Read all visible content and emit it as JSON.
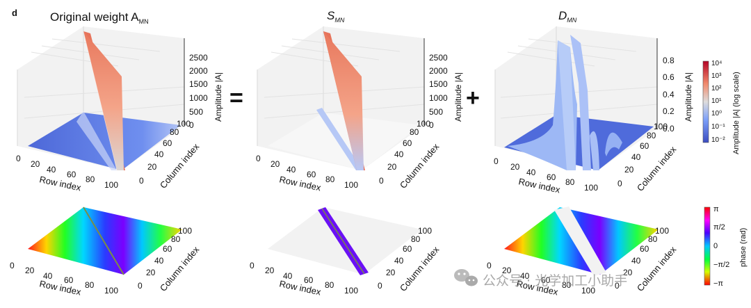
{
  "figure": {
    "panel_letter": "d",
    "titles": {
      "original": "Original weight A",
      "original_sub": "MN",
      "s": "S",
      "s_sub": "MN",
      "d": "D",
      "d_sub": "MN"
    },
    "operators": {
      "equals": "=",
      "plus": "+"
    },
    "axes": {
      "row_label": "Row index",
      "column_label": "Column index",
      "amplitude_label": "Amplitude |A|",
      "row_ticks": [
        "0",
        "20",
        "40",
        "60",
        "80",
        "100"
      ],
      "col_ticks": [
        "0",
        "20",
        "40",
        "60",
        "80",
        "100"
      ],
      "z_ticks_A": [
        "0",
        "500",
        "1000",
        "1500",
        "2000",
        "2500"
      ],
      "z_ticks_D": [
        "0.0",
        "0.2",
        "0.4",
        "0.6",
        "0.8"
      ]
    },
    "colorbar_amplitude": {
      "label": "Amplitude |A| (log scale)",
      "ticks": [
        "10⁴",
        "10³",
        "10²",
        "10¹",
        "10⁰",
        "10⁻¹",
        "10⁻²"
      ],
      "colors": [
        "#b40426",
        "#f18c6e",
        "#dddcdc",
        "#7da0f9",
        "#3b4cc0"
      ]
    },
    "colorbar_phase": {
      "label": "phase (rad)",
      "ticks": [
        "π",
        "π/2",
        "0",
        "−π/2",
        "−π"
      ]
    },
    "watermark": "公众号 · 光学加工小助手"
  }
}
